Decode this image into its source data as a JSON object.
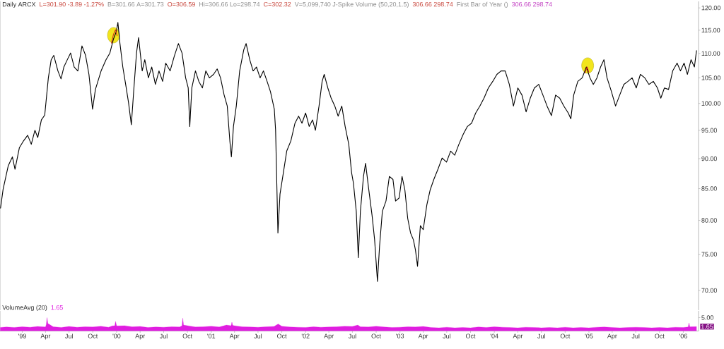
{
  "chart_data": [
    {
      "type": "line",
      "title": "Daily ARCX",
      "annotations": [
        "L=301.90 -3.89 -1.27%",
        "B=301.66 A=301.73",
        "O=306.59",
        "Hi=306.66 Lo=298.74",
        "C=302.32",
        "V=5,099,740 J-Spike Volume (50,20,1.5)",
        "306.66 298.74",
        "First Bar of Year ()",
        "306.66 298.74"
      ],
      "xlim": [
        "1998-10-07",
        "2006-03-01"
      ],
      "ylim": [
        67.4,
        121.5
      ],
      "log": true,
      "yticks": [
        {
          "value": 70,
          "label": "70.00"
        },
        {
          "value": 75,
          "label": "75.00"
        },
        {
          "value": 80,
          "label": "80.00"
        },
        {
          "value": 85,
          "label": "85.00"
        },
        {
          "value": 90,
          "label": "90.00"
        },
        {
          "value": 95,
          "label": "95.00"
        },
        {
          "value": 100,
          "label": "100.00"
        },
        {
          "value": 105,
          "label": "105.00"
        },
        {
          "value": 110,
          "label": "110.00"
        },
        {
          "value": 115,
          "label": "115.00"
        },
        {
          "value": 120,
          "label": "120.00"
        }
      ],
      "tick_labels": "y",
      "series": [
        {
          "type": "scatter",
          "marker": "circle",
          "color": "#f2e51c",
          "x": [
            "1999-12-20",
            "2004-12-27"
          ],
          "values": [
            113.9,
            107.5
          ]
        },
        {
          "color": "#000000",
          "x": [
            "1998-10-09",
            "1998-10-19",
            "1998-11-08",
            "1998-11-24",
            "1998-12-04",
            "1998-12-21",
            "1999-01-06",
            "1999-01-22",
            "1999-02-05",
            "1999-02-19",
            "1999-03-02",
            "1999-03-16",
            "1999-03-29",
            "1999-04-12",
            "1999-04-23",
            "1999-05-03",
            "1999-05-19",
            "1999-05-31",
            "1999-06-11",
            "1999-06-27",
            "1999-07-07",
            "1999-07-21",
            "1999-08-04",
            "1999-08-20",
            "1999-09-03",
            "1999-09-16",
            "1999-09-30",
            "1999-10-11",
            "1999-11-02",
            "1999-11-21",
            "1999-12-06",
            "1999-12-20",
            "1999-12-31",
            "2000-01-06",
            "2000-01-14",
            "2000-01-25",
            "2000-02-05",
            "2000-02-16",
            "2000-02-27",
            "2000-03-07",
            "2000-03-18",
            "2000-03-26",
            "2000-04-09",
            "2000-04-19",
            "2000-05-03",
            "2000-05-16",
            "2000-05-30",
            "2000-06-13",
            "2000-06-27",
            "2000-07-09",
            "2000-07-26",
            "2000-08-11",
            "2000-08-27",
            "2000-09-10",
            "2000-09-24",
            "2000-10-04",
            "2000-10-10",
            "2000-10-18",
            "2000-11-01",
            "2000-11-14",
            "2000-11-28",
            "2000-12-11",
            "2000-12-25",
            "2001-01-10",
            "2001-01-24",
            "2001-02-06",
            "2001-02-20",
            "2001-03-04",
            "2001-03-14",
            "2001-03-20",
            "2001-03-28",
            "2001-04-08",
            "2001-04-21",
            "2001-05-07",
            "2001-05-16",
            "2001-05-30",
            "2001-06-12",
            "2001-06-25",
            "2001-07-09",
            "2001-07-22",
            "2001-08-05",
            "2001-08-18",
            "2001-09-02",
            "2001-09-07",
            "2001-09-16",
            "2001-09-24",
            "2001-10-07",
            "2001-10-20",
            "2001-11-05",
            "2001-11-21",
            "2001-12-05",
            "2001-12-18",
            "2002-01-01",
            "2002-01-15",
            "2002-01-28",
            "2002-02-08",
            "2002-02-22",
            "2002-03-06",
            "2002-03-14",
            "2002-03-28",
            "2002-04-10",
            "2002-04-24",
            "2002-05-07",
            "2002-05-21",
            "2002-06-03",
            "2002-06-17",
            "2002-06-28",
            "2002-07-05",
            "2002-07-16",
            "2002-07-24",
            "2002-08-01",
            "2002-08-13",
            "2002-08-21",
            "2002-09-01",
            "2002-09-15",
            "2002-09-25",
            "2002-10-06",
            "2002-10-14",
            "2002-10-25",
            "2002-11-08",
            "2002-11-21",
            "2002-12-05",
            "2002-12-15",
            "2002-12-29",
            "2003-01-09",
            "2003-01-20",
            "2003-01-31",
            "2003-02-11",
            "2003-02-22",
            "2003-03-02",
            "2003-03-10",
            "2003-03-21",
            "2003-04-01",
            "2003-04-15",
            "2003-04-28",
            "2003-05-12",
            "2003-05-28",
            "2003-06-13",
            "2003-06-30",
            "2003-07-16",
            "2003-08-01",
            "2003-08-17",
            "2003-09-03",
            "2003-09-19",
            "2003-10-05",
            "2003-10-21",
            "2003-11-06",
            "2003-11-22",
            "2003-12-09",
            "2003-12-26",
            "2004-01-11",
            "2004-01-27",
            "2004-02-12",
            "2004-02-28",
            "2004-03-15",
            "2004-04-01",
            "2004-04-17",
            "2004-05-03",
            "2004-05-19",
            "2004-06-04",
            "2004-06-21",
            "2004-07-07",
            "2004-07-23",
            "2004-08-09",
            "2004-08-25",
            "2004-09-10",
            "2004-09-26",
            "2004-10-13",
            "2004-10-23",
            "2004-11-03",
            "2004-11-19",
            "2004-12-06",
            "2004-12-22",
            "2005-01-05",
            "2005-01-18",
            "2005-02-01",
            "2005-02-15",
            "2005-02-28",
            "2005-03-12",
            "2005-03-29",
            "2005-04-14",
            "2005-04-30",
            "2005-05-16",
            "2005-06-01",
            "2005-06-17",
            "2005-07-03",
            "2005-07-19",
            "2005-08-05",
            "2005-08-21",
            "2005-09-07",
            "2005-09-23",
            "2005-10-06",
            "2005-10-20",
            "2005-11-05",
            "2005-11-21",
            "2005-12-08",
            "2005-12-21",
            "2006-01-04",
            "2006-01-17",
            "2006-01-31",
            "2006-02-13",
            "2006-02-21"
          ],
          "values": [
            81.9,
            84.9,
            88.8,
            90.3,
            88.2,
            91.9,
            93.1,
            94.1,
            92.5,
            95.0,
            93.7,
            96.9,
            97.8,
            105.0,
            108.7,
            109.6,
            106.4,
            104.8,
            107.2,
            109.0,
            110.1,
            107.2,
            106.4,
            111.6,
            109.6,
            105.7,
            98.9,
            102.7,
            106.4,
            108.7,
            110.1,
            113.1,
            114.7,
            116.7,
            112.1,
            107.2,
            103.7,
            100.2,
            96.0,
            102.3,
            110.1,
            113.4,
            106.4,
            108.7,
            105.0,
            107.2,
            103.7,
            106.4,
            104.3,
            108.0,
            106.4,
            109.4,
            112.1,
            110.1,
            105.0,
            103.0,
            95.7,
            103.0,
            106.4,
            104.3,
            103.0,
            106.4,
            105.0,
            105.7,
            106.8,
            105.0,
            101.6,
            99.5,
            93.1,
            90.3,
            95.7,
            99.5,
            106.4,
            110.8,
            112.1,
            108.7,
            106.4,
            107.2,
            105.0,
            106.4,
            104.3,
            102.3,
            98.9,
            95.0,
            78.1,
            84.1,
            87.6,
            91.3,
            93.1,
            96.3,
            97.6,
            96.3,
            98.2,
            95.7,
            96.9,
            95.0,
            99.5,
            104.3,
            105.7,
            103.0,
            101.0,
            99.5,
            97.6,
            99.5,
            95.7,
            92.5,
            87.6,
            85.9,
            81.4,
            74.5,
            81.4,
            87.0,
            89.2,
            85.3,
            80.8,
            77.1,
            71.2,
            76.1,
            81.4,
            83.0,
            87.0,
            86.5,
            83.0,
            83.5,
            87.0,
            84.8,
            80.3,
            78.1,
            77.1,
            75.6,
            73.3,
            79.2,
            78.6,
            82.4,
            84.8,
            86.5,
            88.2,
            90.1,
            89.4,
            91.3,
            90.6,
            92.5,
            94.3,
            95.7,
            96.3,
            98.2,
            99.5,
            101.0,
            103.0,
            104.3,
            105.7,
            106.4,
            106.4,
            103.7,
            99.5,
            103.0,
            101.6,
            98.4,
            101.0,
            103.0,
            103.7,
            101.6,
            99.5,
            97.7,
            101.6,
            101.0,
            99.5,
            98.2,
            97.1,
            101.6,
            104.3,
            105.0,
            107.2,
            105.0,
            103.7,
            105.0,
            107.2,
            108.7,
            105.0,
            102.3,
            99.5,
            101.6,
            103.7,
            104.3,
            105.0,
            103.0,
            105.7,
            105.0,
            103.7,
            104.3,
            103.0,
            101.0,
            103.0,
            102.7,
            106.4,
            108.0,
            106.4,
            108.0,
            105.7,
            108.7,
            107.2,
            110.6
          ]
        },
        {
          "color": "#d0301e",
          "x": [
            "1999-12-12",
            "1999-12-20",
            "1999-12-28",
            "2000-01-03",
            "2002-06-01",
            "2004-12-17",
            "2004-12-25",
            "2004-12-31"
          ],
          "values": [
            112.2,
            114.1,
            115.1,
            113.8,
            null,
            106.0,
            107.2,
            106.2
          ]
        }
      ]
    },
    {
      "type": "area",
      "title": "VolumeAvg (20)",
      "subtitle": "1.65",
      "annotations": [
        {
          "text": "1.65",
          "x": "2006-02-21",
          "y": 1.65
        }
      ],
      "xlim": [
        "1998-10-07",
        "2006-03-01"
      ],
      "ylim": [
        0,
        7.5
      ],
      "xticks": [
        {
          "value": "1999-01-01",
          "label": "'99"
        },
        {
          "value": "1999-04-01",
          "label": "Apr"
        },
        {
          "value": "1999-07-01",
          "label": "Jul"
        },
        {
          "value": "1999-10-01",
          "label": "Oct"
        },
        {
          "value": "2000-01-01",
          "label": "'00"
        },
        {
          "value": "2000-04-01",
          "label": "Apr"
        },
        {
          "value": "2000-07-01",
          "label": "Jul"
        },
        {
          "value": "2000-10-01",
          "label": "Oct"
        },
        {
          "value": "2001-01-01",
          "label": "'01"
        },
        {
          "value": "2001-04-01",
          "label": "Apr"
        },
        {
          "value": "2001-07-01",
          "label": "Jul"
        },
        {
          "value": "2001-10-01",
          "label": "Oct"
        },
        {
          "value": "2002-01-01",
          "label": "'02"
        },
        {
          "value": "2002-04-01",
          "label": "Apr"
        },
        {
          "value": "2002-07-01",
          "label": "Jul"
        },
        {
          "value": "2002-10-01",
          "label": "Oct"
        },
        {
          "value": "2003-01-01",
          "label": "'03"
        },
        {
          "value": "2003-04-01",
          "label": "Apr"
        },
        {
          "value": "2003-07-01",
          "label": "Jul"
        },
        {
          "value": "2003-10-01",
          "label": "Oct"
        },
        {
          "value": "2004-01-01",
          "label": "'04"
        },
        {
          "value": "2004-04-01",
          "label": "Apr"
        },
        {
          "value": "2004-07-01",
          "label": "Jul"
        },
        {
          "value": "2004-10-01",
          "label": "Oct"
        },
        {
          "value": "2005-01-01",
          "label": "'05"
        },
        {
          "value": "2005-04-01",
          "label": "Apr"
        },
        {
          "value": "2005-07-01",
          "label": "Jul"
        },
        {
          "value": "2005-10-01",
          "label": "Oct"
        },
        {
          "value": "2006-01-01",
          "label": "'06"
        }
      ],
      "yticks": [
        {
          "value": 5,
          "label": "5.00"
        }
      ],
      "series": [
        {
          "color": "#e01ee0",
          "x": [
            "1998-10-08",
            "1998-11-01",
            "1998-12-01",
            "1999-01-01",
            "1999-02-01",
            "1999-03-01",
            "1999-04-01",
            "1999-04-04",
            "1999-04-07",
            "1999-04-10",
            "1999-05-01",
            "1999-06-01",
            "1999-07-01",
            "1999-08-01",
            "1999-09-01",
            "1999-10-01",
            "1999-11-01",
            "1999-12-01",
            "1999-12-15",
            "1999-12-25",
            "1999-12-28",
            "2000-01-01",
            "2000-02-01",
            "2000-03-01",
            "2000-04-01",
            "2000-05-01",
            "2000-06-01",
            "2000-07-01",
            "2000-08-01",
            "2000-09-01",
            "2000-09-10",
            "2000-09-13",
            "2000-09-16",
            "2000-10-01",
            "2000-11-01",
            "2000-12-01",
            "2001-01-01",
            "2001-02-01",
            "2001-03-01",
            "2001-03-19",
            "2001-03-22",
            "2001-03-25",
            "2001-04-01",
            "2001-05-01",
            "2001-06-01",
            "2001-07-01",
            "2001-08-01",
            "2001-09-01",
            "2001-09-17",
            "2001-10-01",
            "2001-11-01",
            "2001-12-01",
            "2002-01-01",
            "2002-02-01",
            "2002-03-01",
            "2002-04-01",
            "2002-05-01",
            "2002-06-01",
            "2002-07-01",
            "2002-07-22",
            "2002-08-01",
            "2002-09-01",
            "2002-10-01",
            "2002-11-01",
            "2002-12-01",
            "2003-01-01",
            "2003-02-01",
            "2003-03-01",
            "2003-04-01",
            "2003-05-01",
            "2003-06-01",
            "2003-07-01",
            "2003-08-01",
            "2003-09-01",
            "2003-10-01",
            "2003-11-01",
            "2003-12-01",
            "2004-01-01",
            "2004-02-01",
            "2004-03-01",
            "2004-04-01",
            "2004-05-01",
            "2004-06-01",
            "2004-07-01",
            "2004-08-01",
            "2004-09-01",
            "2004-10-01",
            "2004-11-01",
            "2004-12-01",
            "2005-01-01",
            "2005-02-01",
            "2005-03-01",
            "2005-04-01",
            "2005-05-01",
            "2005-06-01",
            "2005-07-01",
            "2005-08-01",
            "2005-09-01",
            "2005-10-01",
            "2005-11-01",
            "2005-12-01",
            "2006-01-01",
            "2006-01-20",
            "2006-01-23",
            "2006-01-26",
            "2006-02-21"
          ],
          "values": [
            1.3,
            1.5,
            1.3,
            1.6,
            1.4,
            1.7,
            1.5,
            2.4,
            5.0,
            2.8,
            1.6,
            1.3,
            1.7,
            1.4,
            1.6,
            1.5,
            1.8,
            1.4,
            1.9,
            2.0,
            3.6,
            1.9,
            2.0,
            1.6,
            1.7,
            1.3,
            1.5,
            1.4,
            1.6,
            1.5,
            2.0,
            4.8,
            2.2,
            2.0,
            1.5,
            1.6,
            1.8,
            1.5,
            2.2,
            2.0,
            3.3,
            2.1,
            2.0,
            1.6,
            1.5,
            1.4,
            1.6,
            1.7,
            2.6,
            1.8,
            1.5,
            1.4,
            1.3,
            1.6,
            1.4,
            1.5,
            1.6,
            1.8,
            1.7,
            2.2,
            1.6,
            1.5,
            1.8,
            1.5,
            1.3,
            1.4,
            1.6,
            1.5,
            1.7,
            1.3,
            1.2,
            1.4,
            1.2,
            1.3,
            1.2,
            1.5,
            1.3,
            1.6,
            1.4,
            1.3,
            1.2,
            1.4,
            1.3,
            1.2,
            1.3,
            1.2,
            1.4,
            1.2,
            1.3,
            1.2,
            1.4,
            1.5,
            1.3,
            1.2,
            1.3,
            1.4,
            1.3,
            1.2,
            1.3,
            1.2,
            1.4,
            1.3,
            1.5,
            3.0,
            1.6,
            1.65
          ]
        }
      ]
    }
  ]
}
